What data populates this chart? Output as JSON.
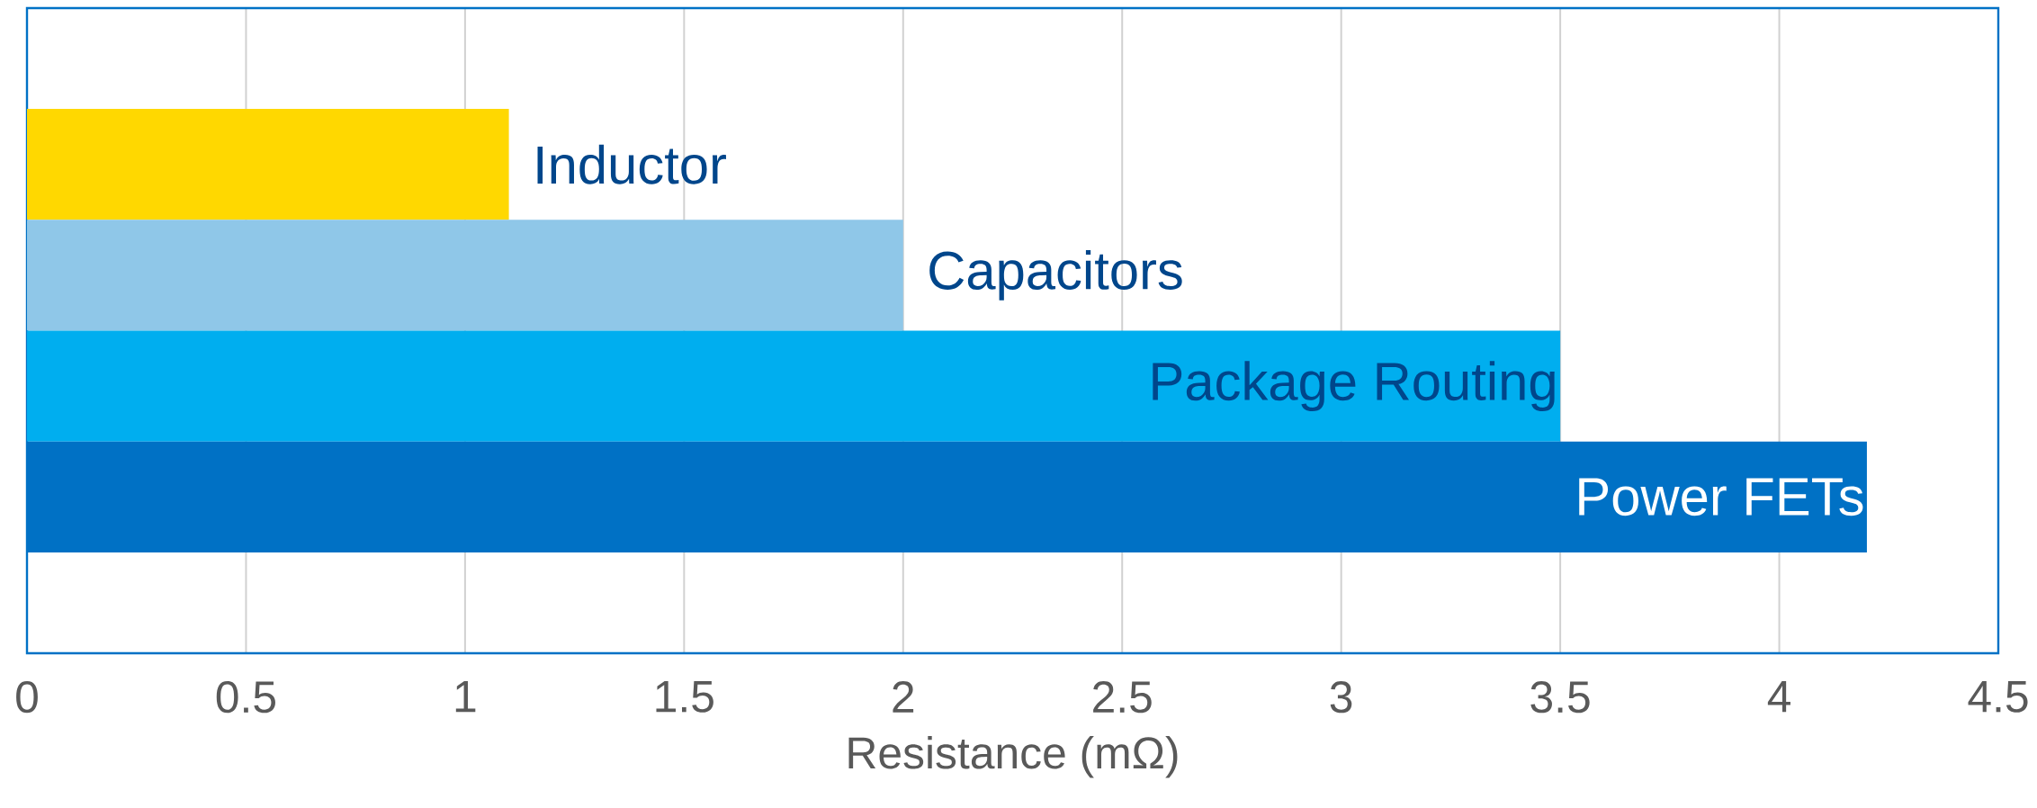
{
  "chart_data": {
    "type": "bar",
    "orientation": "horizontal",
    "xlabel": "Resistance (mΩ)",
    "categories": [
      "Inductor",
      "Capacitors",
      "Package Routing",
      "Power FETs"
    ],
    "values": [
      1.1,
      2.0,
      3.5,
      4.2
    ],
    "colors": [
      "#ffd800",
      "#8fc7e8",
      "#00aeef",
      "#0071c5"
    ],
    "xlim": [
      0,
      4.5
    ],
    "xticks": [
      0,
      0.5,
      1,
      1.5,
      2,
      2.5,
      3,
      3.5,
      4,
      4.5
    ],
    "grid": "x",
    "tick_labels": "x"
  }
}
